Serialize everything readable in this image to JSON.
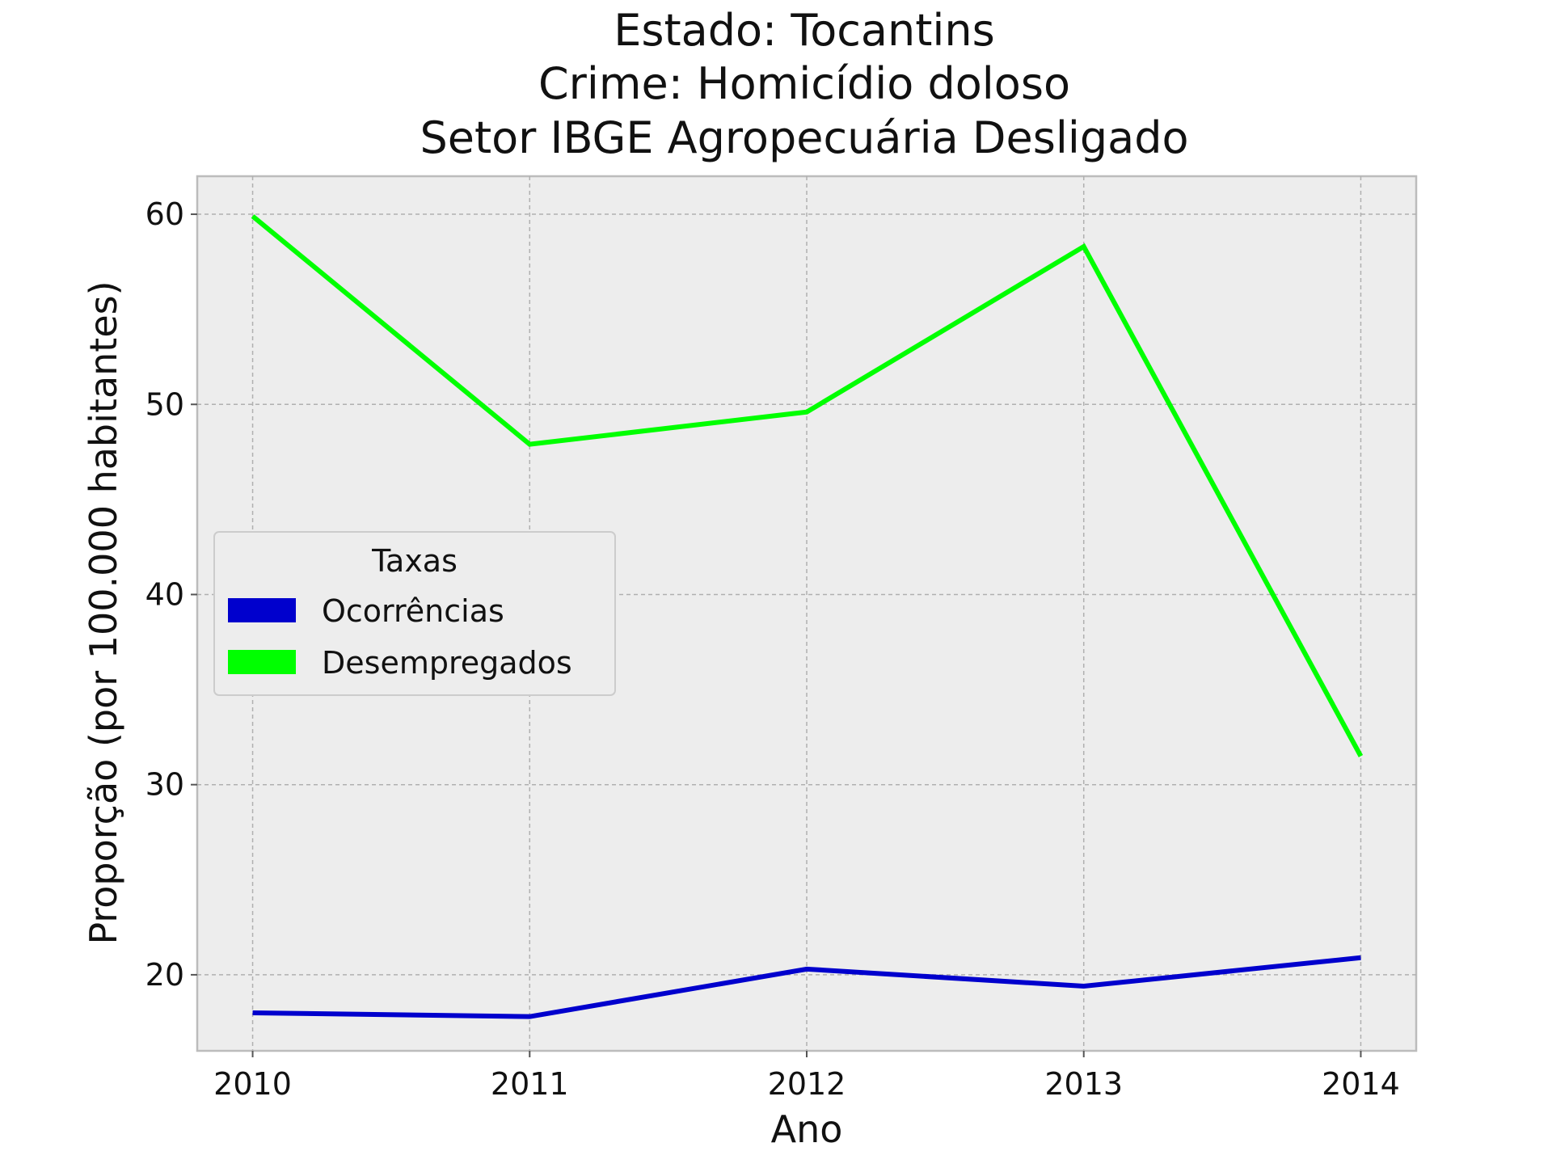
{
  "chart_data": {
    "type": "line",
    "title_lines": [
      "Estado: Tocantins",
      "Crime: Homicídio doloso",
      "Setor IBGE  Agropecuária   Desligado"
    ],
    "xlabel": "Ano",
    "ylabel": "Proporção (por 100.000 habitantes)",
    "x": [
      2010,
      2011,
      2012,
      2013,
      2014
    ],
    "x_tick_labels": [
      "2010",
      "2011",
      "2012",
      "2013",
      "2014"
    ],
    "y_ticks": [
      20,
      30,
      40,
      50,
      60
    ],
    "y_tick_labels": [
      "20",
      "30",
      "40",
      "50",
      "60"
    ],
    "xlim": [
      2009.8,
      2014.2
    ],
    "ylim": [
      16,
      62
    ],
    "grid": true,
    "background": "#ededed",
    "legend": {
      "title": "Taxas",
      "placement": "center-left"
    },
    "series": [
      {
        "name": "Ocorrências",
        "color": "#0000cd",
        "values": [
          18.0,
          17.8,
          20.3,
          19.4,
          20.9
        ]
      },
      {
        "name": "Desempregados",
        "color": "#00ff00",
        "values": [
          59.9,
          47.9,
          49.6,
          58.3,
          31.5
        ]
      }
    ]
  }
}
